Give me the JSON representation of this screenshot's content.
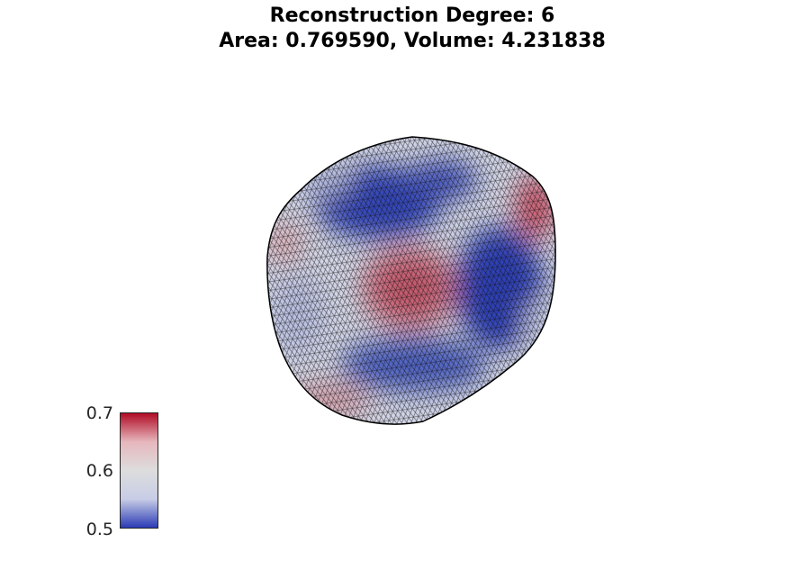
{
  "title": {
    "line1": "Reconstruction Degree: 6",
    "line2": "Area: 0.769590, Volume: 4.231838"
  },
  "colormap": {
    "stops": [
      "#2b3bb5",
      "#c8cde6",
      "#dddddd",
      "#e6b7bd",
      "#b00b25"
    ],
    "min": 0.5,
    "max": 0.7
  },
  "colorbar": {
    "ticks": [
      "0.7",
      "0.6",
      "0.5"
    ]
  }
}
